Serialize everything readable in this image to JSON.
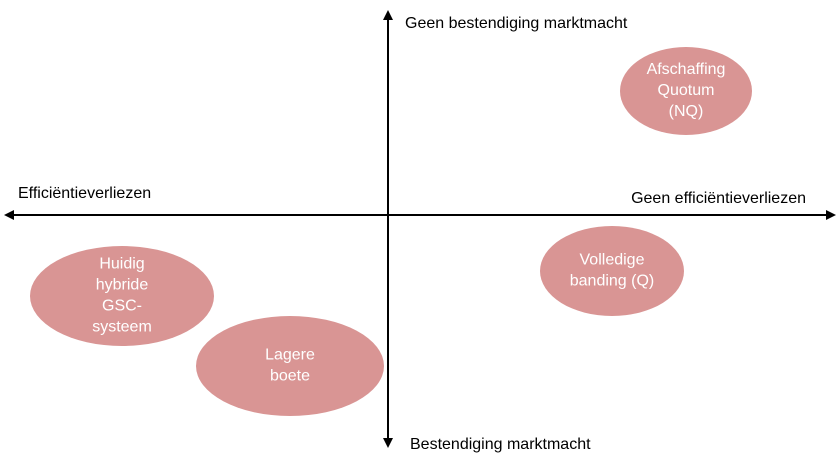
{
  "axes": {
    "top": "Geen bestendiging marktmacht",
    "bottom": "Bestendiging marktmacht",
    "left": "Efficiëntieverliezen",
    "right": "Geen efficiëntieverliezen"
  },
  "nodes": [
    {
      "lines": [
        "Afschaffing",
        "Quotum",
        "(NQ)"
      ]
    },
    {
      "lines": [
        "Volledige",
        "banding (Q)"
      ]
    },
    {
      "lines": [
        "Huidig",
        "hybride",
        "GSC-",
        "systeem"
      ]
    },
    {
      "lines": [
        "Lagere",
        "boete"
      ]
    }
  ]
}
